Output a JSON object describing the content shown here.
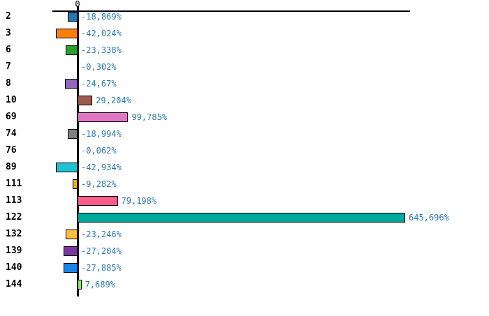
{
  "axis": {
    "zero_label": "0"
  },
  "chart_data": {
    "type": "bar",
    "orientation": "horizontal",
    "title": "",
    "xlabel": "",
    "ylabel": "",
    "grid": false,
    "legend": null,
    "baseline": 0,
    "x_range_pct": [
      -50,
      650
    ],
    "value_label_color": "#2e78ad",
    "categories": [
      "2",
      "3",
      "6",
      "7",
      "8",
      "10",
      "69",
      "74",
      "76",
      "89",
      "111",
      "113",
      "122",
      "132",
      "139",
      "140",
      "144"
    ],
    "values": [
      -18.869,
      -42.024,
      -23.338,
      -0.302,
      -24.67,
      29.204,
      99.785,
      -18.994,
      -0.062,
      -42.934,
      -9.282,
      79.198,
      645.696,
      -23.246,
      -27.204,
      -27.885,
      7.689
    ],
    "value_labels": [
      "-18,869%",
      "-42,024%",
      "-23,338%",
      "-0,302%",
      "-24,67%",
      "29,204%",
      "99,785%",
      "-18,994%",
      "-0,062%",
      "-42,934%",
      "-9,282%",
      "79,198%",
      "645,696%",
      "-23,246%",
      "-27,204%",
      "-27,885%",
      "7,689%"
    ],
    "bar_colors": [
      "#1f77b4",
      "#ff7f0e",
      "#2ca02c",
      null,
      "#9467bd",
      "#9c5a50",
      "#e077c4",
      "#7f7f7f",
      null,
      "#1fc2d2",
      "#edb400",
      "#ff5b8d",
      "#00a79c",
      "#fdbd40",
      "#7c35a0",
      "#1583e8",
      "#90e46a"
    ]
  }
}
